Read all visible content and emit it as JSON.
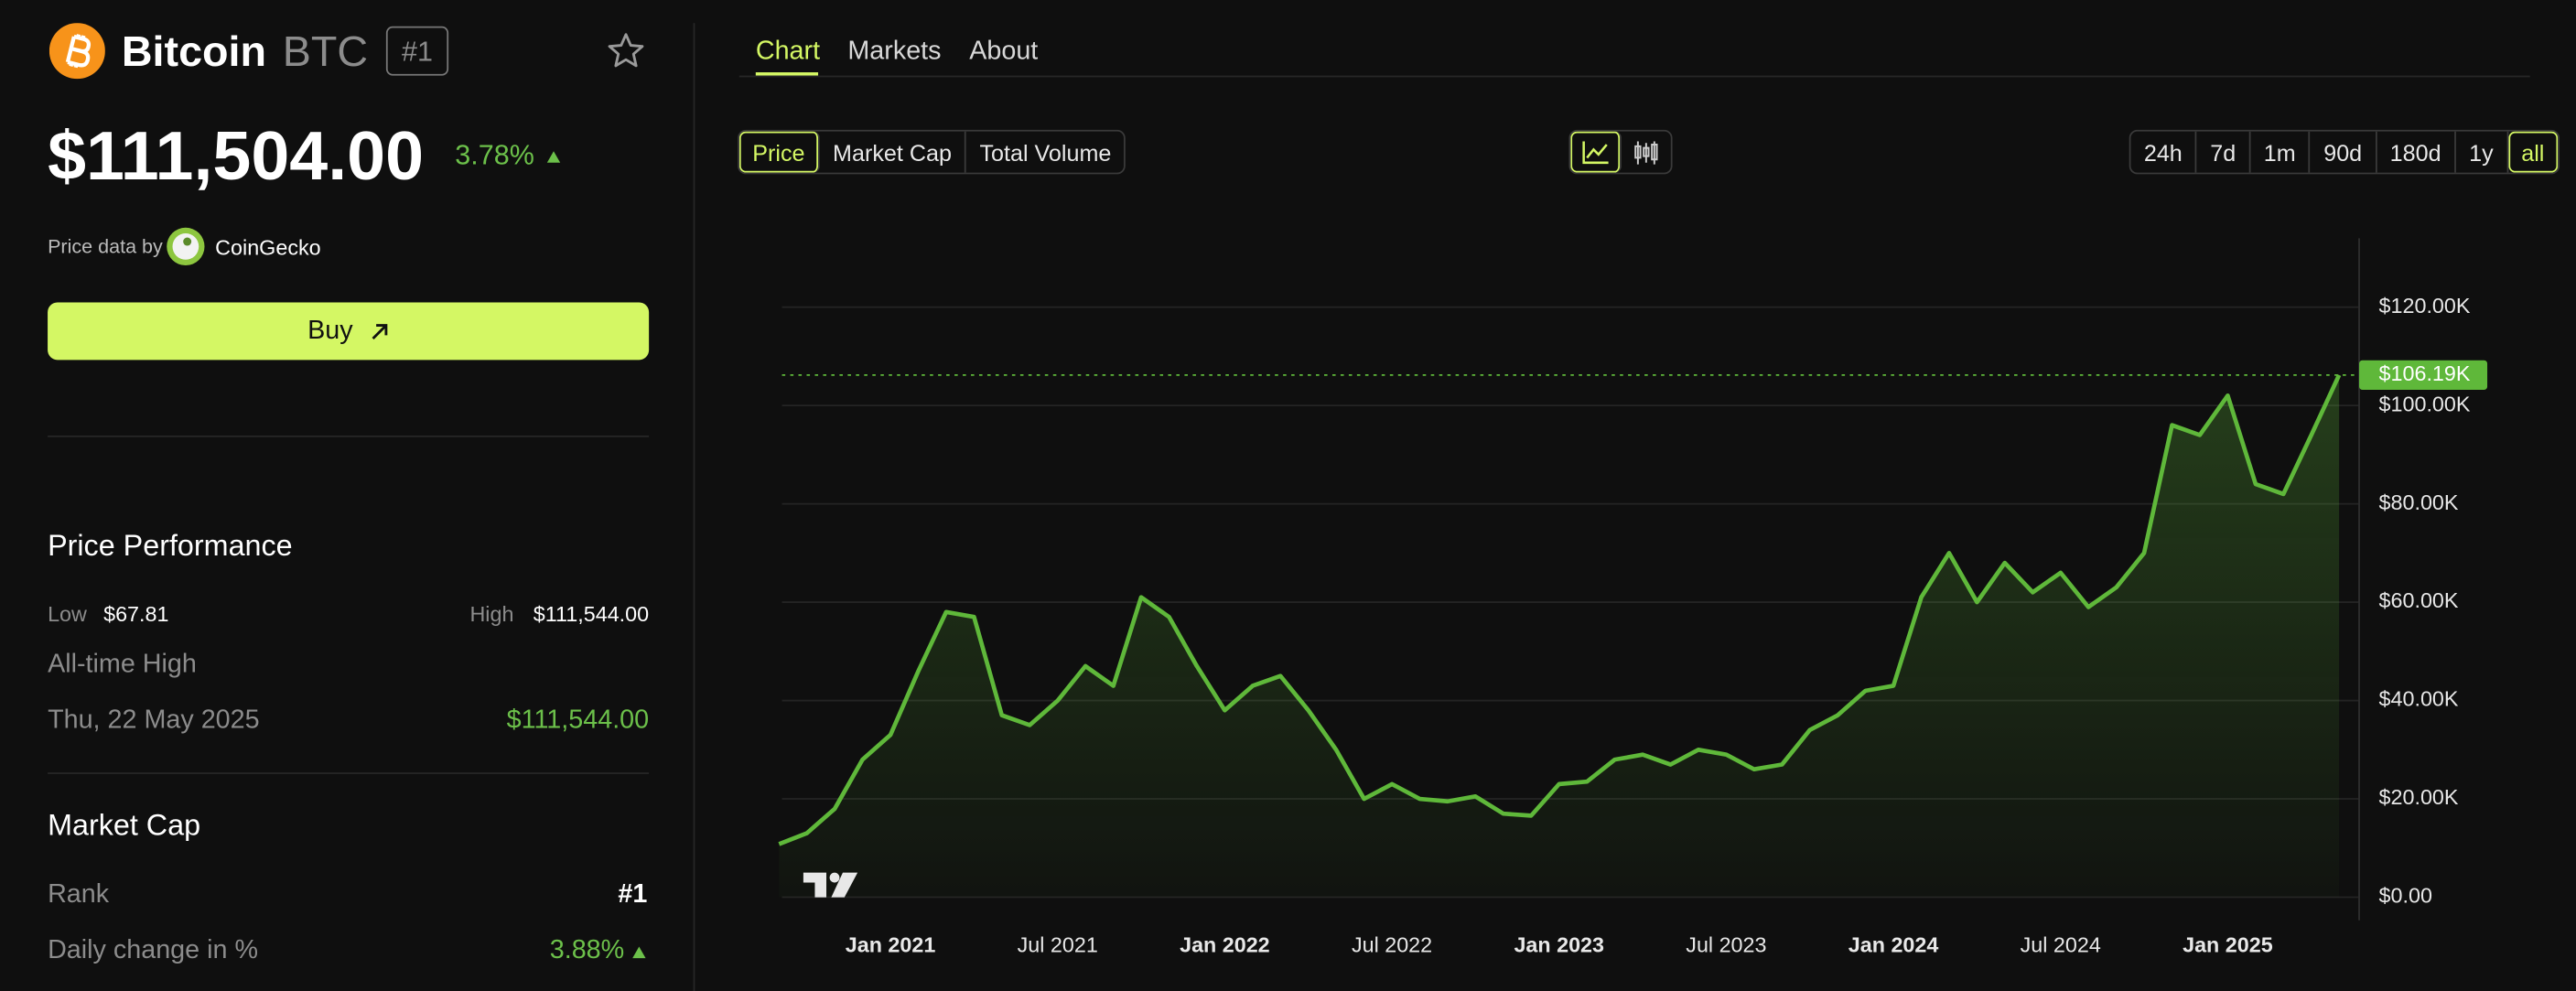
{
  "coin": {
    "name": "Bitcoin",
    "symbol": "BTC",
    "rank_badge": "#1"
  },
  "price": "$111,504.00",
  "change": "3.78%",
  "price_data_by": "Price data by",
  "provider": "CoinGecko",
  "buy": "Buy",
  "tabs": [
    "Chart",
    "Markets",
    "About"
  ],
  "metric_buttons": [
    "Price",
    "Market Cap",
    "Total Volume"
  ],
  "range_buttons": [
    "24h",
    "7d",
    "1m",
    "90d",
    "180d",
    "1y",
    "all"
  ],
  "performance": {
    "title": "Price Performance",
    "low_label": "Low",
    "low": "$67.81",
    "high_label": "High",
    "high": "$111,544.00",
    "ath_label": "All-time High",
    "ath_date": "Thu, 22 May 2025",
    "ath_value": "$111,544.00"
  },
  "market_cap": {
    "title": "Market Cap",
    "rank_label": "Rank",
    "rank": "#1",
    "daily_change_label": "Daily change in %",
    "daily_change": "3.88%"
  },
  "chart_data": {
    "type": "line",
    "categories": [
      null,
      null,
      null,
      null,
      "Jan 2021",
      null,
      null,
      null,
      null,
      null,
      "Jul 2021",
      null,
      null,
      null,
      null,
      null,
      "Jan 2022",
      null,
      null,
      null,
      null,
      null,
      "Jul 2022",
      null,
      null,
      null,
      null,
      null,
      "Jan 2023",
      null,
      null,
      null,
      null,
      null,
      "Jul 2023",
      null,
      null,
      null,
      null,
      null,
      "Jan 2024",
      null,
      null,
      null,
      null,
      null,
      "Jul 2024",
      null,
      null,
      null,
      null,
      null,
      "Jan 2025",
      null,
      null,
      null,
      null
    ],
    "values": [
      10800,
      13000,
      18000,
      28000,
      33000,
      46000,
      58000,
      57000,
      37000,
      35000,
      40000,
      47000,
      43000,
      61000,
      57000,
      47000,
      38000,
      43000,
      45000,
      38000,
      30000,
      20000,
      23000,
      20000,
      19500,
      20500,
      17000,
      16600,
      23000,
      23500,
      28000,
      29000,
      27000,
      30000,
      29000,
      26000,
      27000,
      34000,
      37000,
      42000,
      43000,
      61000,
      70000,
      60000,
      68000,
      62000,
      66000,
      59000,
      63000,
      70000,
      96000,
      94000,
      102000,
      84000,
      82000,
      94000,
      106190
    ],
    "color": "#5fb83a",
    "current_value": 106190,
    "current_label": "$106.19K",
    "ylim": [
      -4700,
      134000
    ],
    "yticks": [
      {
        "value": 0,
        "label": "$0.00"
      },
      {
        "value": 20000,
        "label": "$20.00K"
      },
      {
        "value": 40000,
        "label": "$40.00K"
      },
      {
        "value": 60000,
        "label": "$60.00K"
      },
      {
        "value": 80000,
        "label": "$80.00K"
      },
      {
        "value": 100000,
        "label": "$100.00K"
      },
      {
        "value": 120000,
        "label": "$120.00K"
      }
    ],
    "grid": true
  }
}
